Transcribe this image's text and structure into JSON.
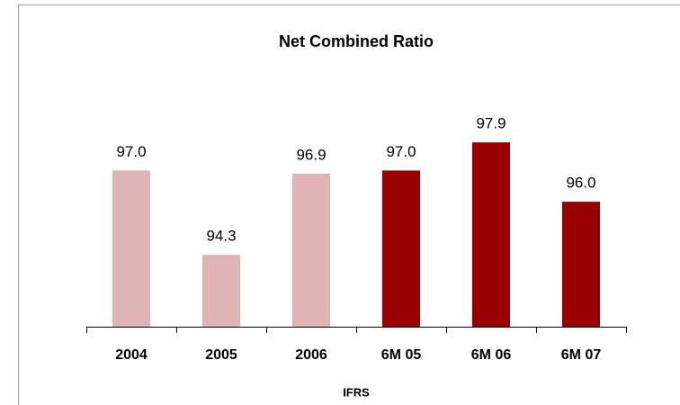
{
  "chart_data": {
    "type": "bar",
    "title": "Net Combined Ratio",
    "x_label": "IFRS",
    "categories": [
      "2004",
      "2005",
      "2006",
      "6M 05",
      "6M 06",
      "6M 07"
    ],
    "values": [
      97.0,
      94.3,
      96.9,
      97.0,
      97.9,
      96.0
    ],
    "value_labels": [
      "97.0",
      "94.3",
      "96.9",
      "97.0",
      "97.9",
      "96.0"
    ],
    "colors": [
      "#dfb3b3",
      "#dfb3b3",
      "#dfb3b3",
      "#990000",
      "#990000",
      "#990000"
    ],
    "ylim": [
      92,
      99
    ]
  }
}
